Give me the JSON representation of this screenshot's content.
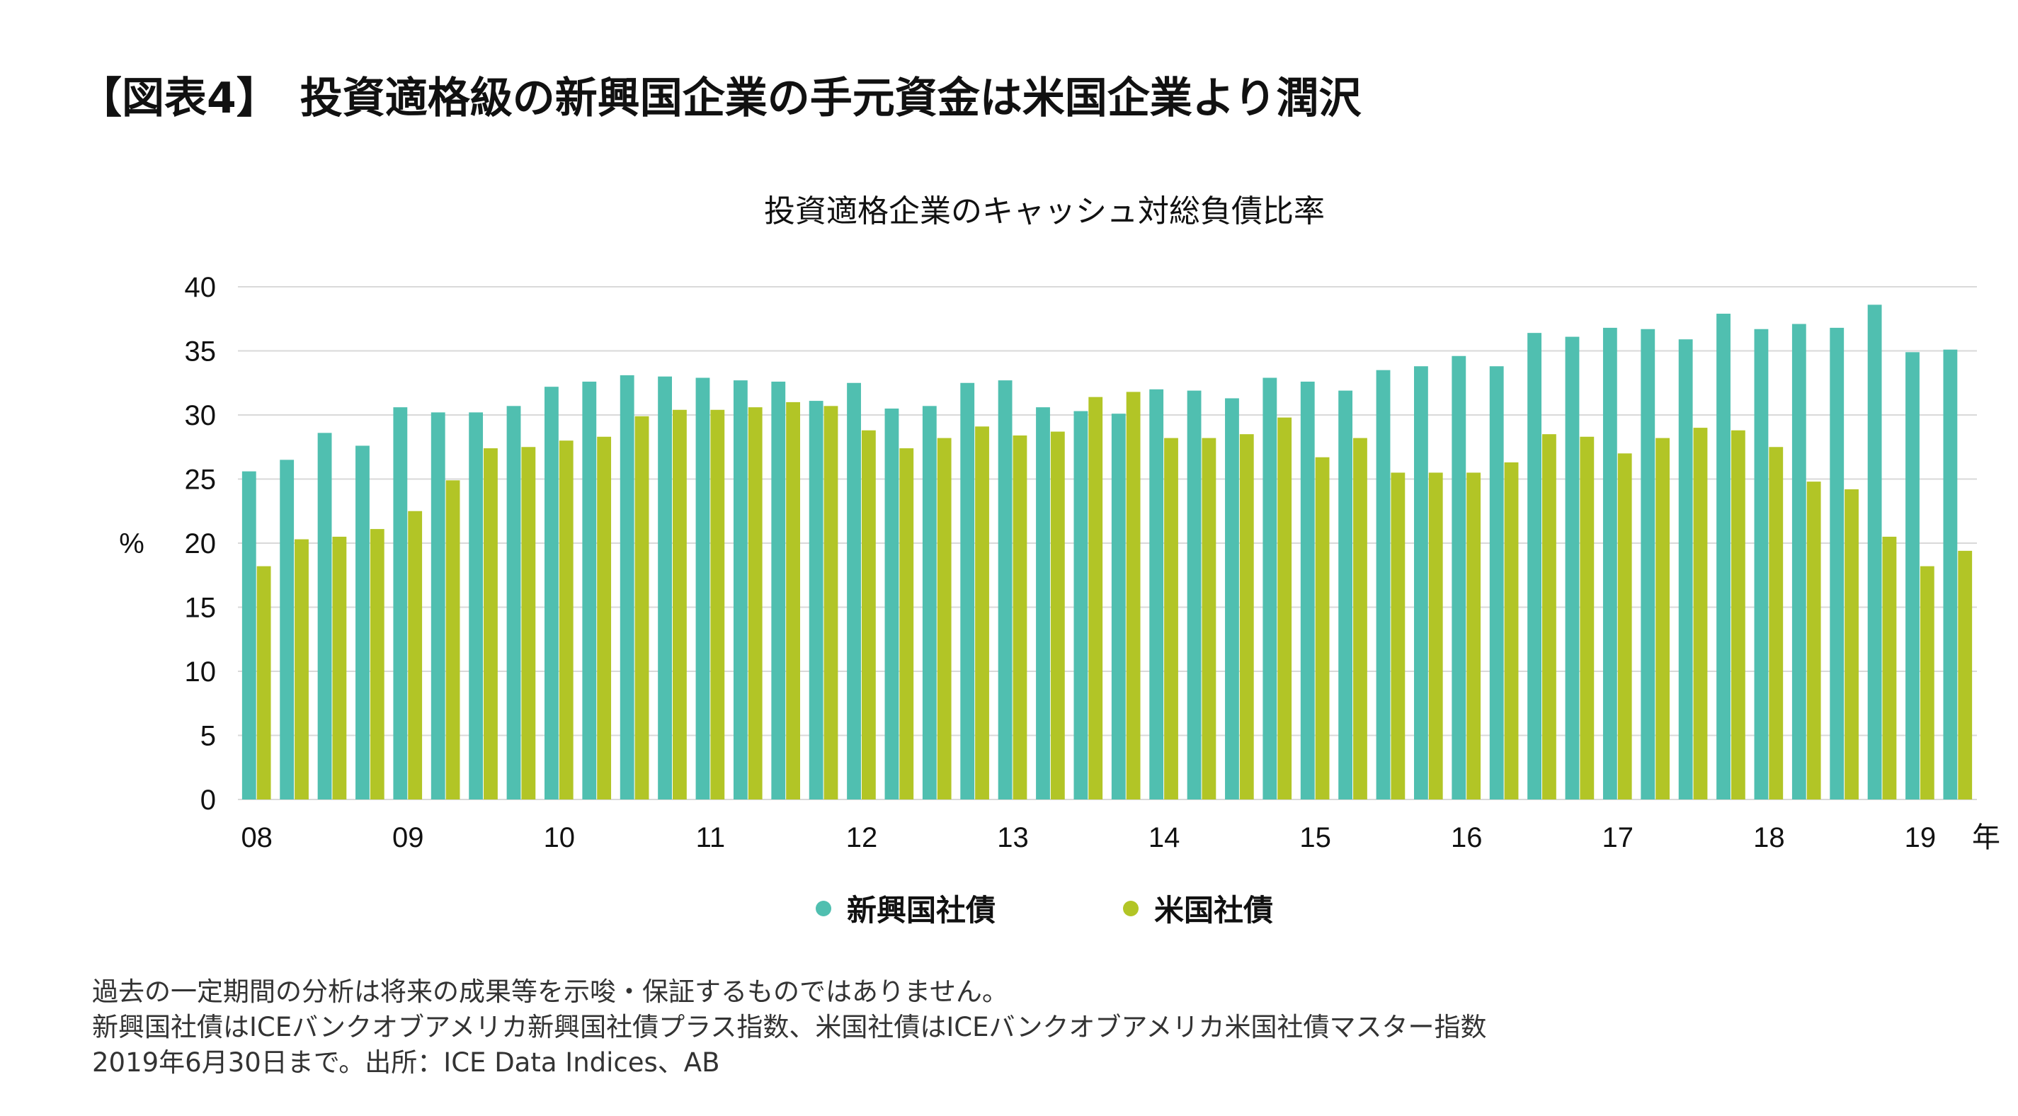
{
  "figure_title": "【図表4】　投資適格級の新興国企業の手元資金は米国企業より潤沢",
  "colors": {
    "em": "#50BFB0",
    "us": "#B2C526",
    "grid": "#D9D9D9"
  },
  "chart_data": {
    "type": "bar",
    "title": "投資適格企業のキャッシュ対総負債比率",
    "ylabel": "%",
    "xlabel": "年",
    "ylim": [
      0,
      40
    ],
    "yticks": [
      "0",
      "5",
      "10",
      "15",
      "20",
      "25",
      "30",
      "35",
      "40"
    ],
    "xtick_labels": [
      "08",
      "09",
      "10",
      "11",
      "12",
      "13",
      "14",
      "15",
      "16",
      "17",
      "18",
      "19"
    ],
    "grid": true,
    "legend_placement": "bottom",
    "series": [
      {
        "name": "新興国社債",
        "values": [
          25.6,
          26.5,
          28.6,
          27.6,
          30.6,
          30.2,
          30.2,
          30.7,
          32.2,
          32.6,
          33.1,
          33.0,
          32.9,
          32.7,
          32.6,
          31.1,
          32.5,
          30.5,
          30.7,
          32.5,
          32.7,
          30.6,
          30.3,
          30.1,
          32.0,
          31.9,
          31.3,
          32.9,
          32.6,
          31.9,
          33.5,
          33.8,
          34.6,
          33.8,
          36.4,
          36.1,
          36.8,
          36.7,
          35.9,
          37.9,
          36.7,
          37.1,
          36.8,
          38.6,
          34.9,
          35.1
        ]
      },
      {
        "name": "米国社債",
        "values": [
          18.2,
          20.3,
          20.5,
          21.1,
          22.5,
          24.9,
          27.4,
          27.5,
          28.0,
          28.3,
          29.9,
          30.4,
          30.4,
          30.6,
          31.0,
          30.7,
          28.8,
          27.4,
          28.2,
          29.1,
          28.4,
          28.7,
          31.4,
          31.8,
          28.2,
          28.2,
          28.5,
          29.8,
          26.7,
          28.2,
          25.5,
          25.5,
          25.5,
          26.3,
          28.5,
          28.3,
          27.0,
          28.2,
          29.0,
          28.8,
          27.5,
          24.8,
          24.2,
          20.5,
          18.2,
          19.4
        ]
      }
    ]
  },
  "notes": [
    "過去の一定期間の分析は将来の成果等を示唆・保証するものではありません。",
    "新興国社債はICEバンクオブアメリカ新興国社債プラス指数、米国社債はICEバンクオブアメリカ米国社債マスター指数",
    "2019年6月30日まで。出所：ICE Data Indices、AB"
  ]
}
